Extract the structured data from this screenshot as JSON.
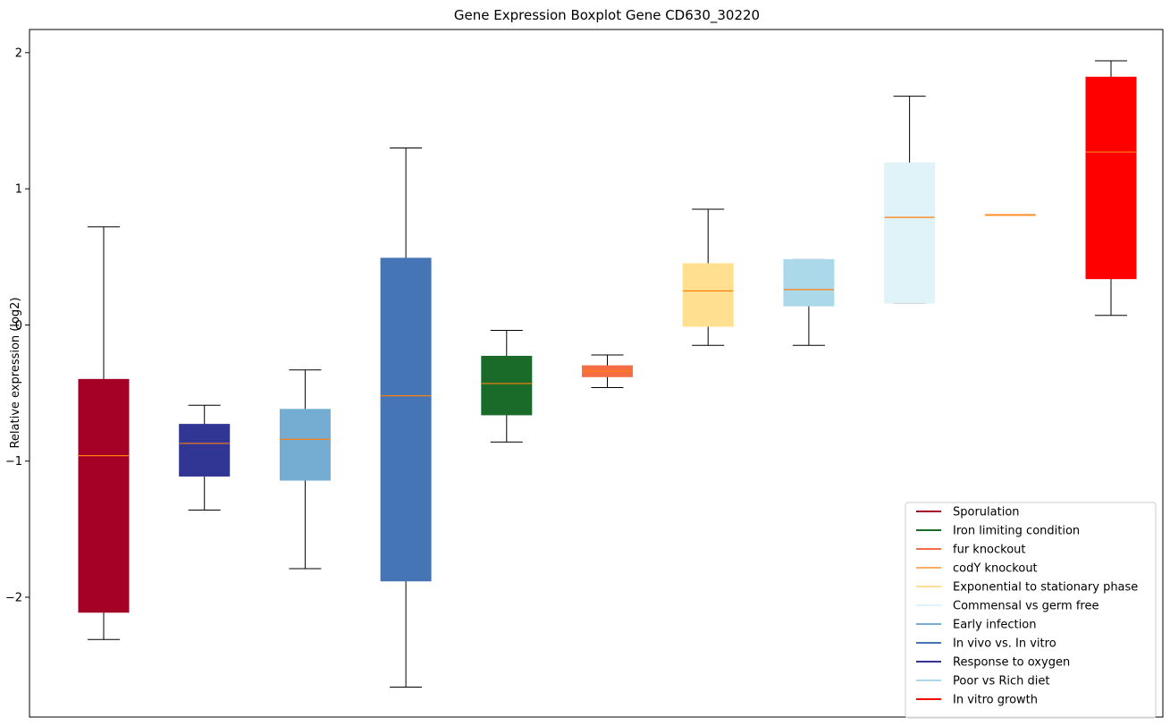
{
  "chart_data": {
    "type": "boxplot",
    "title": "Gene Expression Boxplot Gene CD630_30220",
    "xlabel": "",
    "ylabel": "Relative expression (log2)",
    "ylim": [
      -2.88,
      2.17
    ],
    "yticks": [
      2,
      1,
      0,
      -1,
      -2
    ],
    "ytick_labels": [
      "2",
      "1",
      "0",
      "−1",
      "−2"
    ],
    "grid": false,
    "legend_position": "lower-right",
    "median_color": "#ff7f0e",
    "boxes": [
      {
        "name": "Sporulation",
        "color": "#a50026",
        "whisker_low": -2.31,
        "q1": -2.11,
        "median": -0.96,
        "q3": -0.4,
        "whisker_high": 0.72
      },
      {
        "name": "Response to oxygen",
        "color": "#313695",
        "whisker_low": -1.36,
        "q1": -1.11,
        "median": -0.87,
        "q3": -0.73,
        "whisker_high": -0.59
      },
      {
        "name": "Early infection",
        "color": "#74add1",
        "whisker_low": -1.79,
        "q1": -1.14,
        "median": -0.84,
        "q3": -0.62,
        "whisker_high": -0.33
      },
      {
        "name": "In vivo vs. In vitro",
        "color": "#4575b4",
        "whisker_low": -2.66,
        "q1": -1.88,
        "median": -0.52,
        "q3": 0.49,
        "whisker_high": 1.3
      },
      {
        "name": "Iron limiting condition",
        "color": "#1a6b2a",
        "whisker_low": -0.86,
        "q1": -0.66,
        "median": -0.43,
        "q3": -0.23,
        "whisker_high": -0.04
      },
      {
        "name": "fur knockout",
        "color": "#f46d43",
        "whisker_low": -0.46,
        "q1": -0.38,
        "median": -0.34,
        "q3": -0.3,
        "whisker_high": -0.22
      },
      {
        "name": "Exponential to stationary phase",
        "color": "#fee090",
        "whisker_low": -0.15,
        "q1": -0.01,
        "median": 0.25,
        "q3": 0.45,
        "whisker_high": 0.85
      },
      {
        "name": "Poor vs Rich diet",
        "color": "#abd9e9",
        "whisker_low": -0.15,
        "q1": 0.14,
        "median": 0.26,
        "q3": 0.48,
        "whisker_high": 0.48
      },
      {
        "name": "Commensal vs germ free",
        "color": "#e0f3f8",
        "whisker_low": 0.16,
        "q1": 0.16,
        "median": 0.79,
        "q3": 1.19,
        "whisker_high": 1.68
      },
      {
        "name": "codY knockout",
        "color": "#fdae61",
        "whisker_low": 0.81,
        "q1": 0.81,
        "median": 0.81,
        "q3": 0.81,
        "whisker_high": 0.81
      },
      {
        "name": "In vitro growth",
        "color": "#ff0000",
        "whisker_low": 0.07,
        "q1": 0.34,
        "median": 1.27,
        "q3": 1.82,
        "whisker_high": 1.94
      }
    ],
    "legend": [
      {
        "label": "Sporulation",
        "color": "#a50026"
      },
      {
        "label": "Iron limiting condition",
        "color": "#1a6b2a"
      },
      {
        "label": "fur knockout",
        "color": "#f46d43"
      },
      {
        "label": "codY knockout",
        "color": "#fdae61"
      },
      {
        "label": "Exponential to stationary phase",
        "color": "#fee090"
      },
      {
        "label": "Commensal vs germ free",
        "color": "#e0f3f8"
      },
      {
        "label": "Early infection",
        "color": "#74add1"
      },
      {
        "label": "In vivo vs. In vitro",
        "color": "#4575b4"
      },
      {
        "label": "Response to oxygen",
        "color": "#313695"
      },
      {
        "label": "Poor vs Rich diet",
        "color": "#abd9e9"
      },
      {
        "label": "In vitro growth",
        "color": "#ff0000"
      }
    ]
  }
}
